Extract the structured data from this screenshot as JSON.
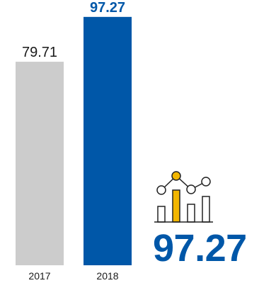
{
  "chart_data": {
    "type": "bar",
    "categories": [
      "2017",
      "2018"
    ],
    "values": [
      79.71,
      97.27
    ],
    "value_labels": [
      "79.71",
      "97.27"
    ],
    "colors": [
      "#cccccc",
      "#0057a8"
    ],
    "label_colors": [
      "#1a1a1a",
      "#0057a8"
    ],
    "label_weights": [
      "normal",
      "bold"
    ],
    "title": "",
    "xlabel": "",
    "ylabel": "",
    "ylim": [
      0,
      100
    ],
    "grid": false,
    "legend": "none"
  },
  "highlight": {
    "value": "97.27",
    "color": "#0057a8",
    "icon": "bar-chart-trend-icon",
    "icon_accent_color": "#f2b600"
  }
}
